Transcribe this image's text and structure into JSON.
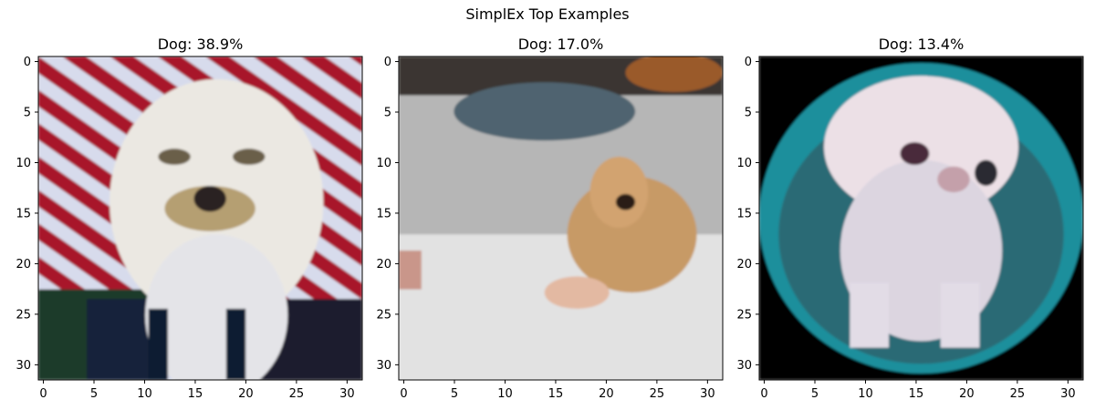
{
  "figure_title": "SimplEx Top Examples",
  "chart_data": [
    {
      "type": "image",
      "title": "Dog: 38.9%",
      "xticks": [
        0,
        5,
        10,
        15,
        20,
        25,
        30
      ],
      "yticks": [
        0,
        5,
        10,
        15,
        20,
        25,
        30
      ],
      "xlim": [
        -0.5,
        31.5
      ],
      "ylim": [
        31.5,
        -0.5
      ],
      "image_size": [
        32,
        32
      ],
      "content": "white-dog-flag"
    },
    {
      "type": "image",
      "title": "Dog: 17.0%",
      "xticks": [
        0,
        5,
        10,
        15,
        20,
        25,
        30
      ],
      "yticks": [
        0,
        5,
        10,
        15,
        20,
        25,
        30
      ],
      "xlim": [
        -0.5,
        31.5
      ],
      "ylim": [
        31.5,
        -0.5
      ],
      "image_size": [
        32,
        32
      ],
      "content": "tan-dog-blanket"
    },
    {
      "type": "image",
      "title": "Dog: 13.4%",
      "xticks": [
        0,
        5,
        10,
        15,
        20,
        25,
        30
      ],
      "yticks": [
        0,
        5,
        10,
        15,
        20,
        25,
        30
      ],
      "xlim": [
        -0.5,
        31.5
      ],
      "ylim": [
        31.5,
        -0.5
      ],
      "image_size": [
        32,
        32
      ],
      "content": "white-puppy-teal"
    }
  ]
}
